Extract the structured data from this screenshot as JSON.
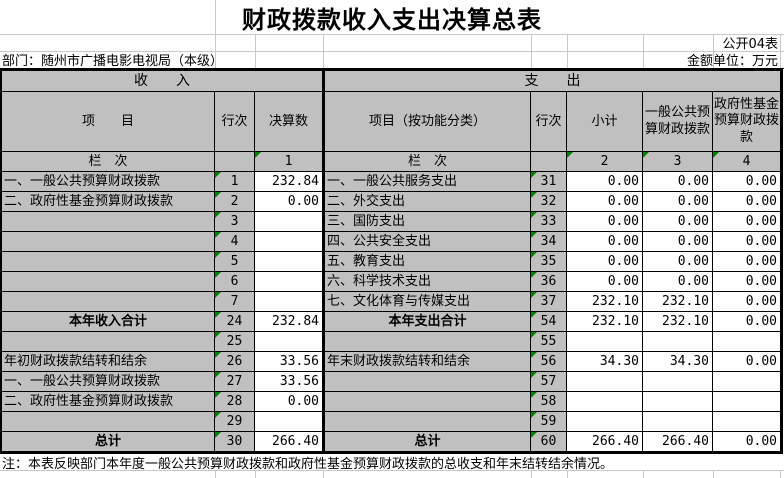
{
  "sheet": {
    "title": "财政拨款收入支出决算总表",
    "table_code": "公开04表",
    "department": "部门：随州市广播电影电视局（本级）",
    "unit_label": "金额单位：万元",
    "note": "注：本表反映部门本年度一般公共预算财政拨款和政府性基金预算财政拨款的总收支和年末结转结余情况。"
  },
  "colors": {
    "header_cell_gray": "#c0c0c0",
    "value_cell_white": "#ffffff",
    "table_border": "#000000",
    "faint_gridline": "#c9c9c9",
    "error_indicator_green": "#008000"
  },
  "income": {
    "section_title": "收　　入",
    "headers": {
      "item": "项　　目",
      "line": "行次",
      "amount": "决算数"
    },
    "column_index_row": {
      "label": "栏　次",
      "amount_col": "1"
    },
    "rows": [
      {
        "item": "一、一般公共预算财政拨款",
        "line": "1",
        "amount": "232.84",
        "sum": false
      },
      {
        "item": "二、政府性基金预算财政拨款",
        "line": "2",
        "amount": "0.00",
        "sum": false
      },
      {
        "item": "",
        "line": "3",
        "amount": "",
        "sum": false
      },
      {
        "item": "",
        "line": "4",
        "amount": "",
        "sum": false
      },
      {
        "item": "",
        "line": "5",
        "amount": "",
        "sum": false
      },
      {
        "item": "",
        "line": "6",
        "amount": "",
        "sum": false
      },
      {
        "item": "",
        "line": "7",
        "amount": "",
        "sum": false
      },
      {
        "item": "本年收入合计",
        "line": "24",
        "amount": "232.84",
        "sum": true
      },
      {
        "item": "",
        "line": "25",
        "amount": "",
        "sum": false
      },
      {
        "item": "年初财政拨款结转和结余",
        "line": "26",
        "amount": "33.56",
        "sum": false
      },
      {
        "item": "一、一般公共预算财政拨款",
        "line": "27",
        "amount": "33.56",
        "sum": false
      },
      {
        "item": "二、政府性基金预算财政拨款",
        "line": "28",
        "amount": "0.00",
        "sum": false
      },
      {
        "item": "",
        "line": "29",
        "amount": "",
        "sum": false
      },
      {
        "item": "总计",
        "line": "30",
        "amount": "266.40",
        "sum": true
      }
    ]
  },
  "expenditure": {
    "section_title": "支　　出",
    "headers": {
      "item": "项目（按功能分类）",
      "line": "行次",
      "subtotal": "小计",
      "general": "一般公共预算财政拨款",
      "fund": "政府性基金预算财政拨款"
    },
    "column_index_row": {
      "label": "栏　次",
      "subtotal_col": "2",
      "general_col": "3",
      "fund_col": "4"
    },
    "rows": [
      {
        "item": "一、一般公共服务支出",
        "line": "31",
        "subtotal": "0.00",
        "general": "0.00",
        "fund": "0.00",
        "sum": false
      },
      {
        "item": "二、外交支出",
        "line": "32",
        "subtotal": "0.00",
        "general": "0.00",
        "fund": "0.00",
        "sum": false
      },
      {
        "item": "三、国防支出",
        "line": "33",
        "subtotal": "0.00",
        "general": "0.00",
        "fund": "0.00",
        "sum": false
      },
      {
        "item": "四、公共安全支出",
        "line": "34",
        "subtotal": "0.00",
        "general": "0.00",
        "fund": "0.00",
        "sum": false
      },
      {
        "item": "五、教育支出",
        "line": "35",
        "subtotal": "0.00",
        "general": "0.00",
        "fund": "0.00",
        "sum": false
      },
      {
        "item": "六、科学技术支出",
        "line": "36",
        "subtotal": "0.00",
        "general": "0.00",
        "fund": "0.00",
        "sum": false
      },
      {
        "item": "七、文化体育与传媒支出",
        "line": "37",
        "subtotal": "232.10",
        "general": "232.10",
        "fund": "0.00",
        "sum": false
      },
      {
        "item": "本年支出合计",
        "line": "54",
        "subtotal": "232.10",
        "general": "232.10",
        "fund": "0.00",
        "sum": true
      },
      {
        "item": "",
        "line": "55",
        "subtotal": "",
        "general": "",
        "fund": "",
        "sum": false
      },
      {
        "item": "年末财政拨款结转和结余",
        "line": "56",
        "subtotal": "34.30",
        "general": "34.30",
        "fund": "0.00",
        "sum": false
      },
      {
        "item": "",
        "line": "57",
        "subtotal": "",
        "general": "",
        "fund": "",
        "sum": false
      },
      {
        "item": "",
        "line": "58",
        "subtotal": "",
        "general": "",
        "fund": "",
        "sum": false
      },
      {
        "item": "",
        "line": "59",
        "subtotal": "",
        "general": "",
        "fund": "",
        "sum": false
      },
      {
        "item": "总计",
        "line": "60",
        "subtotal": "266.40",
        "general": "266.40",
        "fund": "0.00",
        "sum": true
      }
    ]
  }
}
